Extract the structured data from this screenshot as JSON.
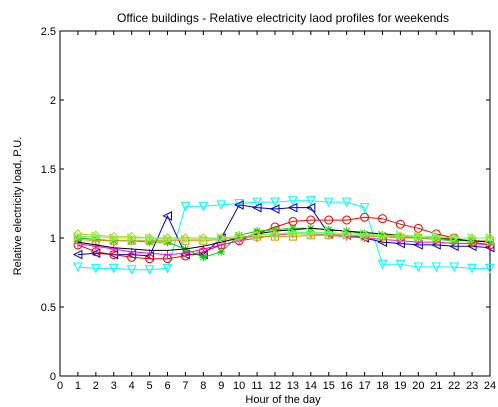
{
  "chart_data": {
    "type": "line",
    "title": "Office buildings - Relative electricity laod profiles for weekends",
    "xlabel": "Hour of the day",
    "ylabel": "Relative electricity load, P.U.",
    "xlim": [
      0,
      24
    ],
    "ylim": [
      0,
      2.5
    ],
    "x_ticks": [
      "0",
      "1",
      "2",
      "3",
      "4",
      "5",
      "6",
      "7",
      "8",
      "9",
      "10",
      "11",
      "12",
      "13",
      "14",
      "15",
      "16",
      "17",
      "18",
      "19",
      "20",
      "21",
      "22",
      "23",
      "24"
    ],
    "y_ticks": [
      "0",
      "0.5",
      "1",
      "1.5",
      "2",
      "2.5"
    ],
    "grid": false,
    "legend": false,
    "x": [
      1,
      2,
      3,
      4,
      5,
      6,
      7,
      8,
      9,
      10,
      11,
      12,
      13,
      14,
      15,
      16,
      17,
      18,
      19,
      20,
      21,
      22,
      23,
      24
    ],
    "series": [
      {
        "color": "#00ffff",
        "marker": "triangle-down",
        "values": [
          0.79,
          0.78,
          0.78,
          0.77,
          0.77,
          0.78,
          1.23,
          1.23,
          1.24,
          1.25,
          1.26,
          1.26,
          1.27,
          1.27,
          1.26,
          1.26,
          1.22,
          0.81,
          0.81,
          0.79,
          0.79,
          0.79,
          0.78,
          0.78
        ]
      },
      {
        "color": "#0000cc",
        "marker": "triangle-left",
        "values": [
          0.88,
          0.89,
          0.88,
          0.88,
          0.87,
          1.16,
          0.88,
          0.88,
          1.0,
          1.24,
          1.22,
          1.21,
          1.22,
          1.22,
          1.03,
          1.02,
          1.0,
          0.97,
          0.96,
          0.95,
          0.95,
          0.94,
          0.94,
          0.93
        ]
      },
      {
        "color": "#ff0000",
        "marker": "circle",
        "values": [
          0.95,
          0.9,
          0.88,
          0.86,
          0.85,
          0.85,
          0.87,
          0.9,
          0.95,
          0.98,
          1.03,
          1.08,
          1.12,
          1.13,
          1.13,
          1.13,
          1.15,
          1.14,
          1.1,
          1.07,
          1.03,
          1.0,
          0.97,
          0.95
        ]
      },
      {
        "color": "#ff00ff",
        "marker": "plus",
        "values": [
          0.96,
          0.94,
          0.92,
          0.9,
          0.89,
          0.88,
          0.89,
          0.92,
          0.95,
          0.98,
          1.0,
          1.02,
          1.03,
          1.03,
          1.02,
          1.01,
          1.0,
          0.99,
          0.98,
          0.97,
          0.97,
          0.96,
          0.96,
          0.95
        ]
      },
      {
        "color": "#00cc00",
        "marker": "star",
        "values": [
          1.0,
          0.99,
          0.98,
          0.98,
          0.97,
          0.97,
          0.92,
          0.86,
          0.9,
          1.02,
          1.05,
          1.06,
          1.07,
          1.07,
          1.06,
          1.05,
          1.03,
          1.02,
          1.01,
          1.0,
          0.99,
          0.98,
          0.98,
          0.97
        ]
      },
      {
        "color": "#cc9900",
        "marker": "square",
        "values": [
          0.99,
          0.98,
          0.98,
          0.98,
          0.98,
          0.98,
          0.98,
          0.98,
          0.99,
          1.0,
          1.01,
          1.01,
          1.01,
          1.02,
          1.02,
          1.02,
          1.01,
          1.01,
          1.0,
          1.0,
          0.99,
          0.99,
          0.98,
          0.98
        ]
      },
      {
        "color": "#000000",
        "marker": "none",
        "values": [
          0.97,
          0.95,
          0.93,
          0.92,
          0.91,
          0.91,
          0.92,
          0.94,
          0.97,
          1.0,
          1.03,
          1.05,
          1.06,
          1.07,
          1.06,
          1.05,
          1.04,
          1.03,
          1.02,
          1.01,
          1.0,
          0.99,
          0.98,
          0.97
        ]
      },
      {
        "color": "#cccc00",
        "marker": "diamond",
        "values": [
          1.03,
          1.02,
          1.01,
          1.01,
          1.0,
          1.0,
          1.0,
          1.0,
          1.0,
          1.01,
          1.02,
          1.03,
          1.03,
          1.03,
          1.03,
          1.02,
          1.02,
          1.01,
          1.01,
          1.01,
          1.0,
          1.0,
          1.0,
          1.0
        ]
      },
      {
        "color": "#66ff66",
        "marker": "triangle-right",
        "values": [
          1.01,
          1.01,
          1.0,
          1.0,
          1.0,
          0.99,
          0.99,
          0.99,
          1.0,
          1.01,
          1.02,
          1.03,
          1.04,
          1.04,
          1.04,
          1.03,
          1.03,
          1.02,
          1.02,
          1.01,
          1.01,
          1.0,
          1.0,
          1.0
        ]
      }
    ]
  }
}
